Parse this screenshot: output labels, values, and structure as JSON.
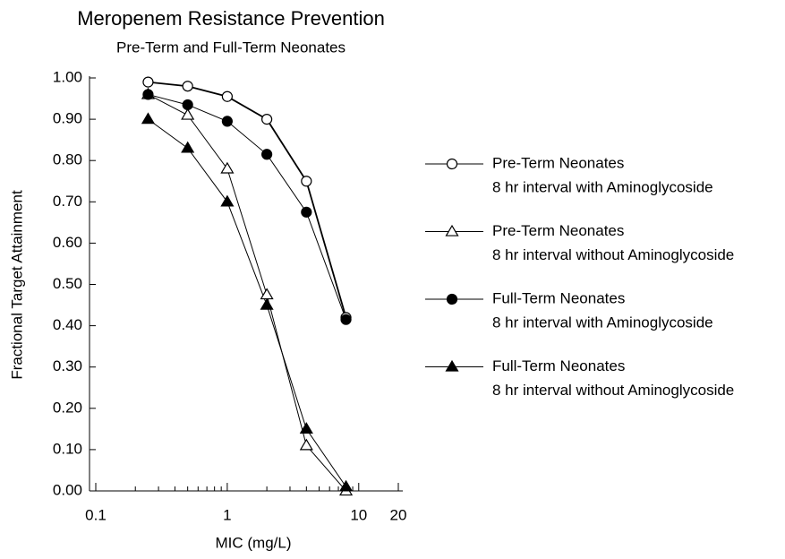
{
  "chart_data": {
    "type": "line",
    "title": "Meropenem Resistance Prevention",
    "subtitle": "Pre-Term and Full-Term Neonates",
    "x_label": "MIC (mg/L)",
    "y_label": "Fractional Target Attainment",
    "x": [
      0.25,
      0.5,
      1,
      2,
      4,
      8
    ],
    "xscale": "log",
    "xlim": [
      0.1,
      20
    ],
    "xticks": [
      0.1,
      1,
      10,
      20
    ],
    "xminorticks": [
      0.2,
      0.3,
      0.4,
      0.5,
      0.6,
      0.7,
      0.8,
      0.9,
      2,
      3,
      4,
      5,
      6,
      7,
      8,
      9
    ],
    "ylim": [
      0,
      1
    ],
    "yticks": [
      {
        "value": 0,
        "label": "0.00"
      },
      {
        "value": 0.1,
        "label": "0.10"
      },
      {
        "value": 0.2,
        "label": "0.20"
      },
      {
        "value": 0.3,
        "label": "0.30"
      },
      {
        "value": 0.4,
        "label": "0.40"
      },
      {
        "value": 0.5,
        "label": "0.50"
      },
      {
        "value": 0.6,
        "label": "0.60"
      },
      {
        "value": 0.7,
        "label": "0.70"
      },
      {
        "value": 0.8,
        "label": "0.80"
      },
      {
        "value": 0.9,
        "label": "0.90"
      },
      {
        "value": 1,
        "label": "1.00"
      }
    ],
    "legend": "right",
    "series": [
      {
        "name": "Pre-Term Neonates",
        "detail": "8 hr interval with Aminoglycoside",
        "marker": "circle",
        "filled": false,
        "color": "#000000",
        "values": [
          0.99,
          0.98,
          0.955,
          0.9,
          0.75,
          0.42
        ]
      },
      {
        "name": "Pre-Term Neonates",
        "detail": "8 hr interval without Aminoglycoside",
        "marker": "triangle",
        "filled": false,
        "color": "#000000",
        "values": [
          0.96,
          0.91,
          0.78,
          0.475,
          0.11,
          0.0
        ]
      },
      {
        "name": "Full-Term Neonates",
        "detail": "8 hr interval with Aminoglycoside",
        "marker": "circle",
        "filled": true,
        "color": "#000000",
        "values": [
          0.96,
          0.935,
          0.895,
          0.815,
          0.675,
          0.415
        ]
      },
      {
        "name": "Full-Term Neonates",
        "detail": "8 hr interval without Aminoglycoside",
        "marker": "triangle",
        "filled": true,
        "color": "#000000",
        "values": [
          0.9,
          0.83,
          0.7,
          0.45,
          0.15,
          0.01
        ]
      }
    ]
  }
}
